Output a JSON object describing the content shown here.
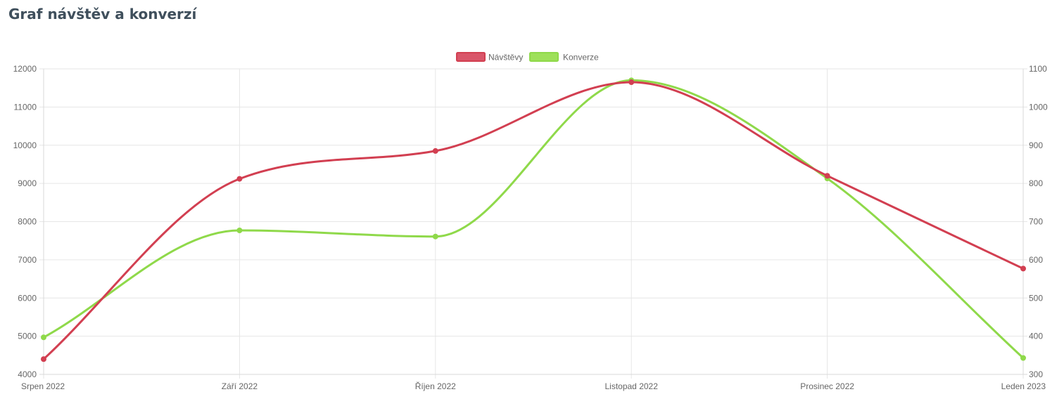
{
  "page": {
    "title": "Graf návštěv a konverzí"
  },
  "chart_data": {
    "type": "line",
    "title": "",
    "categories": [
      "Srpen 2022",
      "Září 2022",
      "Říjen 2022",
      "Listopad 2022",
      "Prosinec 2022",
      "Leden 2023"
    ],
    "series": [
      {
        "name": "Návštěvy",
        "axis": "left",
        "color": "#d23f51",
        "values": [
          4400,
          9120,
          9850,
          11650,
          9200,
          6770
        ]
      },
      {
        "name": "Konverze",
        "axis": "right",
        "color": "#8fd94a",
        "values": [
          397,
          677,
          661,
          1070,
          813,
          343
        ]
      }
    ],
    "y_left": {
      "min": 4000,
      "max": 12000,
      "ticks": [
        "12000",
        "11000",
        "10000",
        "9000",
        "8000",
        "7000",
        "6000",
        "5000",
        "4000"
      ]
    },
    "y_right": {
      "min": 300,
      "max": 1100,
      "ticks": [
        "1100",
        "1000",
        "900",
        "800",
        "700",
        "600",
        "500",
        "400",
        "300"
      ]
    },
    "grid": true,
    "legend": "top-center",
    "xlabel": "",
    "ylabel": ""
  }
}
